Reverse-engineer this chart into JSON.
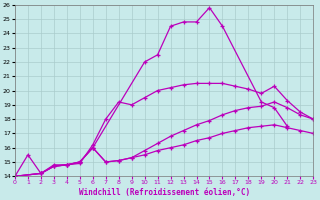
{
  "xlabel": "Windchill (Refroidissement éolien,°C)",
  "bg_color": "#c8eaea",
  "grid_color": "#aacccc",
  "line_color": "#bb00bb",
  "xlim": [
    0,
    23
  ],
  "ylim": [
    14,
    26
  ],
  "xticks": [
    0,
    1,
    2,
    3,
    4,
    5,
    6,
    7,
    8,
    9,
    10,
    11,
    12,
    13,
    14,
    15,
    16,
    17,
    18,
    19,
    20,
    21,
    22,
    23
  ],
  "yticks": [
    14,
    15,
    16,
    17,
    18,
    19,
    20,
    21,
    22,
    23,
    24,
    25,
    26
  ],
  "series": [
    {
      "x": [
        0,
        2,
        3,
        4,
        5,
        6,
        10,
        11,
        12,
        13,
        14,
        15,
        16,
        19,
        20,
        21
      ],
      "y": [
        14.0,
        14.2,
        14.7,
        14.8,
        15.0,
        16.0,
        22.0,
        22.5,
        24.5,
        24.8,
        24.8,
        25.8,
        24.5,
        19.2,
        18.8,
        17.5
      ]
    },
    {
      "x": [
        0,
        1,
        2,
        3,
        4,
        5,
        6,
        7,
        8,
        9,
        10,
        11,
        12,
        13,
        14,
        15,
        16,
        17,
        18,
        19,
        20,
        21,
        22,
        23
      ],
      "y": [
        14.0,
        15.5,
        14.2,
        14.8,
        14.8,
        14.9,
        16.2,
        18.0,
        19.2,
        19.0,
        19.5,
        20.0,
        20.2,
        20.4,
        20.5,
        20.5,
        20.5,
        20.3,
        20.1,
        19.8,
        20.3,
        19.3,
        18.5,
        18.0
      ]
    },
    {
      "x": [
        0,
        2,
        3,
        4,
        5,
        6,
        7,
        8,
        9,
        10,
        11,
        12,
        13,
        14,
        15,
        16,
        17,
        18,
        19,
        20,
        21,
        22,
        23
      ],
      "y": [
        14.0,
        14.2,
        14.7,
        14.8,
        15.0,
        16.0,
        15.0,
        15.1,
        15.3,
        15.8,
        16.3,
        16.8,
        17.2,
        17.6,
        17.9,
        18.3,
        18.6,
        18.8,
        18.9,
        19.2,
        18.8,
        18.3,
        18.0
      ]
    },
    {
      "x": [
        0,
        2,
        3,
        4,
        5,
        6,
        7,
        8,
        9,
        10,
        11,
        12,
        13,
        14,
        15,
        16,
        17,
        18,
        19,
        20,
        21,
        22,
        23
      ],
      "y": [
        14.0,
        14.2,
        14.7,
        14.8,
        15.0,
        16.0,
        15.0,
        15.1,
        15.3,
        15.5,
        15.8,
        16.0,
        16.2,
        16.5,
        16.7,
        17.0,
        17.2,
        17.4,
        17.5,
        17.6,
        17.4,
        17.2,
        17.0
      ]
    }
  ]
}
